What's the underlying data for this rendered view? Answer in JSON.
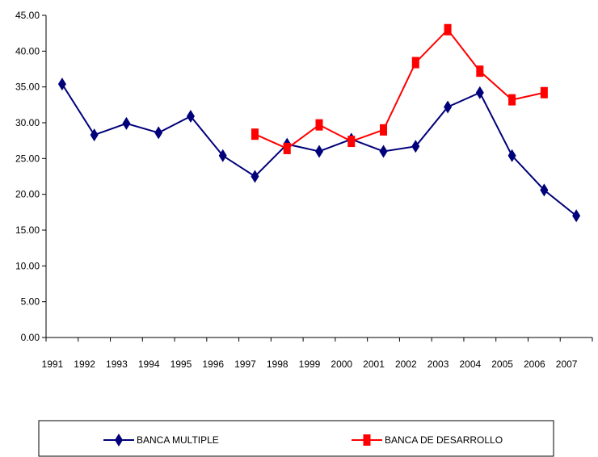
{
  "chart_data": {
    "type": "line",
    "title": "",
    "xlabel": "",
    "ylabel": "",
    "categories": [
      "1991",
      "1992",
      "1993",
      "1994",
      "1995",
      "1996",
      "1997",
      "1998",
      "1999",
      "2000",
      "2001",
      "2002",
      "2003",
      "2004",
      "2005",
      "2006",
      "2007"
    ],
    "ylim": [
      0,
      45
    ],
    "yticks": [
      "0.00",
      "5.00",
      "10.00",
      "15.00",
      "20.00",
      "25.00",
      "30.00",
      "35.00",
      "40.00",
      "45.00"
    ],
    "grid": false,
    "legend_position": "bottom",
    "series": [
      {
        "name": "BANCA MULTIPLE",
        "color": "#00007a",
        "marker": "diamond",
        "values": [
          35.4,
          28.3,
          29.9,
          28.6,
          30.9,
          25.4,
          22.5,
          27.0,
          26.0,
          27.7,
          26.0,
          26.7,
          32.2,
          34.2,
          25.4,
          20.6,
          17.0
        ]
      },
      {
        "name": "BANCA DE DESARROLLO",
        "color": "#ff0000",
        "marker": "square",
        "values": [
          null,
          null,
          null,
          null,
          null,
          null,
          28.4,
          26.4,
          29.7,
          27.4,
          29.0,
          38.4,
          43.0,
          37.2,
          33.2,
          34.2,
          null
        ]
      }
    ]
  }
}
